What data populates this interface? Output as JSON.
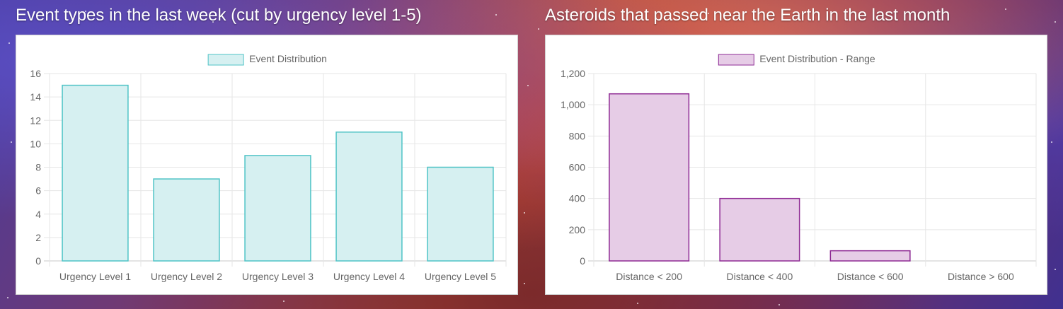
{
  "left_panel": {
    "title": "Event types in the last week (cut by urgency level 1-5)"
  },
  "right_panel": {
    "title": "Asteroids that passed near the Earth in the last month"
  },
  "chart_data": [
    {
      "type": "bar",
      "legend": "Event Distribution",
      "categories": [
        "Urgency Level 1",
        "Urgency Level 2",
        "Urgency Level 3",
        "Urgency Level 4",
        "Urgency Level 5"
      ],
      "values": [
        15,
        7,
        9,
        11,
        8
      ],
      "ylim": [
        0,
        16
      ],
      "yticks": [
        0,
        2,
        4,
        6,
        8,
        10,
        12,
        14,
        16
      ],
      "ytick_labels": [
        "0",
        "2",
        "4",
        "6",
        "8",
        "10",
        "12",
        "14",
        "16"
      ],
      "grid": true,
      "legend_position": "top",
      "fill": "#d6f0f1",
      "stroke": "#4fc3c6"
    },
    {
      "type": "bar",
      "legend": "Event Distribution - Range",
      "categories": [
        "Distance < 200",
        "Distance < 400",
        "Distance < 600",
        "Distance > 600"
      ],
      "values": [
        1070,
        400,
        65,
        0
      ],
      "ylim": [
        0,
        1200
      ],
      "yticks": [
        0,
        200,
        400,
        600,
        800,
        1000,
        1200
      ],
      "ytick_labels": [
        "0",
        "200",
        "400",
        "600",
        "800",
        "1,000",
        "1,200"
      ],
      "grid": true,
      "legend_position": "top",
      "fill": "#e6cce6",
      "stroke": "#8e2a94"
    }
  ]
}
